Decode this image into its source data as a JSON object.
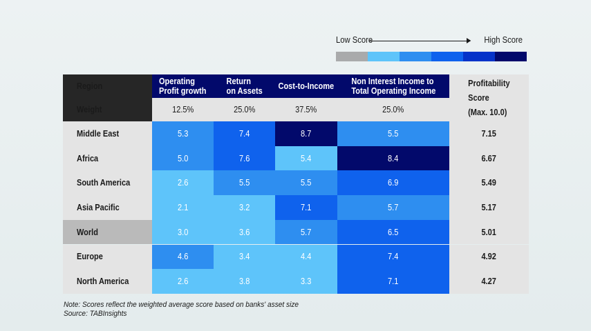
{
  "legend": {
    "low_label": "Low Score",
    "high_label": "High Score",
    "colors": [
      "#a9aaab",
      "#5ec4fa",
      "#2e8ef0",
      "#0f62ed",
      "#0633c9",
      "#02096b"
    ]
  },
  "chart_data": {
    "type": "table",
    "title": "",
    "row_header": "Region",
    "weight_header": "Weight",
    "columns": [
      {
        "name": "Operating Profit growth",
        "name_lines": [
          "Operating",
          "Profit growth"
        ],
        "weight": "12.5%"
      },
      {
        "name": "Return on Assets",
        "name_lines": [
          "Return",
          "on Assets"
        ],
        "weight": "25.0%"
      },
      {
        "name": "Cost-to-Income",
        "name_lines": [
          "Cost-to-Income"
        ],
        "weight": "37.5%"
      },
      {
        "name": "Non Interest Income to Total Operating Income",
        "name_lines": [
          "Non Interest Income to",
          "Total Operating Income"
        ],
        "weight": "25.0%"
      }
    ],
    "score_header_lines": [
      "Profitability",
      "Score",
      "(Max. 10.0)"
    ],
    "rows": [
      {
        "region": "Middle East",
        "values": [
          "5.3",
          "7.4",
          "8.7",
          "5.5"
        ],
        "score": "7.15"
      },
      {
        "region": "Africa",
        "values": [
          "5.0",
          "7.6",
          "5.4",
          "8.4"
        ],
        "score": "6.67"
      },
      {
        "region": "South America",
        "values": [
          "2.6",
          "5.5",
          "5.5",
          "6.9"
        ],
        "score": "5.49"
      },
      {
        "region": "Asia Pacific",
        "values": [
          "2.1",
          "3.2",
          "7.1",
          "5.7"
        ],
        "score": "5.17"
      },
      {
        "region": "World",
        "values": [
          "3.0",
          "3.6",
          "5.7",
          "6.5"
        ],
        "score": "5.01"
      },
      {
        "region": "Europe",
        "values": [
          "4.6",
          "3.4",
          "4.4",
          "7.4"
        ],
        "score": "4.92"
      },
      {
        "region": "North America",
        "values": [
          "2.6",
          "3.8",
          "3.3",
          "7.1"
        ],
        "score": "4.27"
      }
    ],
    "cell_colors": [
      [
        "#2e8ef0",
        "#0f62ed",
        "#02096b",
        "#2e8ef0"
      ],
      [
        "#2e8ef0",
        "#0f62ed",
        "#5ec4fa",
        "#02096b"
      ],
      [
        "#5ec4fa",
        "#2e8ef0",
        "#2e8ef0",
        "#0f62ed"
      ],
      [
        "#5ec4fa",
        "#5ec4fa",
        "#0f62ed",
        "#2e8ef0"
      ],
      [
        "#5ec4fa",
        "#5ec4fa",
        "#2e8ef0",
        "#0f62ed"
      ],
      [
        "#2e8ef0",
        "#5ec4fa",
        "#5ec4fa",
        "#0f62ed"
      ],
      [
        "#5ec4fa",
        "#5ec4fa",
        "#5ec4fa",
        "#0f62ed"
      ]
    ],
    "highlight_row": "World",
    "highlight_color": "#bababa"
  },
  "notes": {
    "note": "Note: Scores reflect the weighted average score based on banks' asset size",
    "source": "Source: TABInsights"
  }
}
